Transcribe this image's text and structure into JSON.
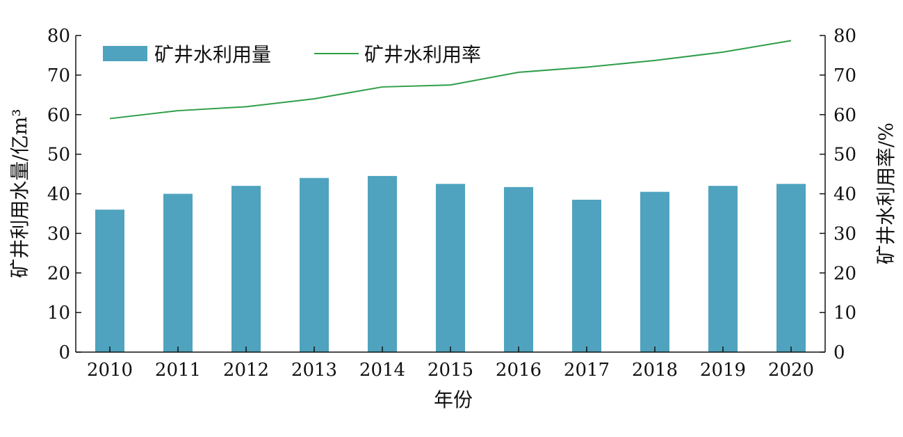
{
  "chart_data": {
    "type": "bar",
    "categories": [
      "2010",
      "2011",
      "2012",
      "2013",
      "2014",
      "2015",
      "2016",
      "2017",
      "2018",
      "2019",
      "2020"
    ],
    "series": [
      {
        "name": "矿井水利用量",
        "type": "bar",
        "axis": "left",
        "values": [
          36,
          40,
          42,
          44,
          44.5,
          42.5,
          41.7,
          38.5,
          40.5,
          42,
          42.5
        ]
      },
      {
        "name": "矿井水利用率",
        "type": "line",
        "axis": "right",
        "values": [
          59,
          61,
          62,
          64,
          67,
          67.5,
          70.7,
          72,
          73.7,
          75.8,
          78.7
        ]
      }
    ],
    "xlabel": "年份",
    "ylabel": "矿井利用水量/亿m³",
    "ylabel_right": "矿井水利用率/%",
    "ylim": [
      0,
      80
    ],
    "ylim_right": [
      0,
      80
    ],
    "yticks": [
      0,
      10,
      20,
      30,
      40,
      50,
      60,
      70,
      80
    ],
    "grid": false,
    "legend": "top-left",
    "colors": {
      "bar": "#4fa3be",
      "line": "#2e9e48",
      "axis": "#111111"
    }
  }
}
